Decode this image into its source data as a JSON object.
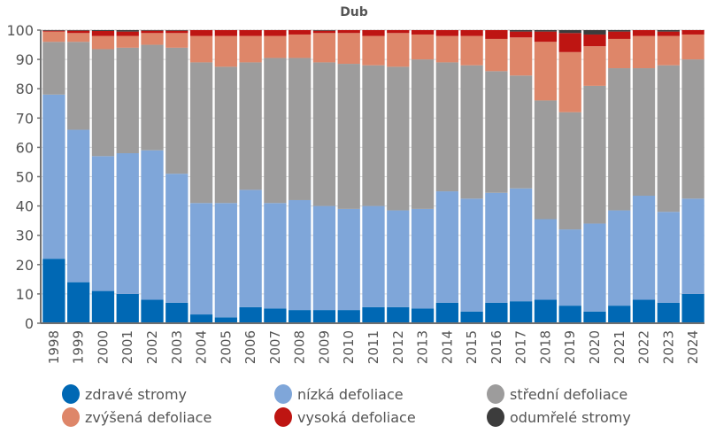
{
  "chart_data": {
    "type": "bar",
    "stacked": true,
    "title": "Dub",
    "xlabel": "",
    "ylabel": "",
    "ylim": [
      0,
      100
    ],
    "yticks": [
      0,
      10,
      20,
      30,
      40,
      50,
      60,
      70,
      80,
      90,
      100
    ],
    "grid": true,
    "legend_position": "bottom",
    "categories": [
      "1998",
      "1999",
      "2000",
      "2001",
      "2002",
      "2003",
      "2004",
      "2005",
      "2006",
      "2007",
      "2008",
      "2009",
      "2010",
      "2011",
      "2012",
      "2013",
      "2014",
      "2015",
      "2016",
      "2017",
      "2018",
      "2019",
      "2020",
      "2021",
      "2022",
      "2023",
      "2024"
    ],
    "series": [
      {
        "name": "zdravé stromy",
        "color": "#0068b4",
        "values": [
          22,
          14,
          11,
          10,
          8,
          7,
          3,
          2,
          5.5,
          5,
          4.5,
          4.5,
          4.5,
          5.5,
          5.5,
          5,
          7,
          4,
          7,
          7.5,
          8,
          6,
          4,
          6,
          8,
          7,
          10
        ]
      },
      {
        "name": "nízká defoliace",
        "color": "#7fa6d9",
        "values": [
          56,
          52,
          46,
          48,
          51,
          44,
          38,
          39,
          40,
          36,
          37.5,
          35.5,
          34.5,
          34.5,
          33,
          34,
          38,
          38.5,
          37.5,
          38.5,
          27.5,
          26,
          30,
          32.5,
          35.5,
          31,
          32.5
        ]
      },
      {
        "name": "střední defoliace",
        "color": "#9d9c9c",
        "values": [
          18,
          30,
          36.5,
          36,
          36,
          43,
          48,
          46.5,
          43.5,
          49.5,
          48.5,
          49,
          49.5,
          48,
          49,
          51,
          44,
          45.5,
          41.5,
          38.5,
          40.5,
          40,
          47,
          48.5,
          43.5,
          50,
          47.5
        ]
      },
      {
        "name": "zvýšená defoliace",
        "color": "#de8669",
        "values": [
          3.5,
          3,
          4.5,
          4,
          4,
          5,
          9,
          10.5,
          9,
          7.5,
          8,
          10,
          10.5,
          10,
          11.5,
          8.5,
          9,
          10,
          11,
          13,
          20,
          20.5,
          13.5,
          10,
          11,
          10,
          8.5
        ]
      },
      {
        "name": "vysoká defoliace",
        "color": "#be1512",
        "values": [
          0.3,
          0.8,
          1.7,
          1.5,
          0.8,
          0.8,
          2,
          2,
          2,
          2,
          1.5,
          0.8,
          1,
          2,
          1,
          1.5,
          2,
          2,
          3,
          2,
          3.5,
          6.5,
          4,
          2.5,
          2,
          1.5,
          1.5
        ]
      },
      {
        "name": "odumřelé stromy",
        "color": "#3c3c3c",
        "values": [
          0.2,
          0.2,
          0.3,
          0.5,
          0.2,
          0.2,
          0,
          0,
          0,
          0,
          0,
          0.2,
          0,
          0,
          0,
          0,
          0,
          0,
          0,
          0.5,
          0.5,
          1,
          1.5,
          0.5,
          0,
          0.5,
          0
        ]
      }
    ]
  }
}
